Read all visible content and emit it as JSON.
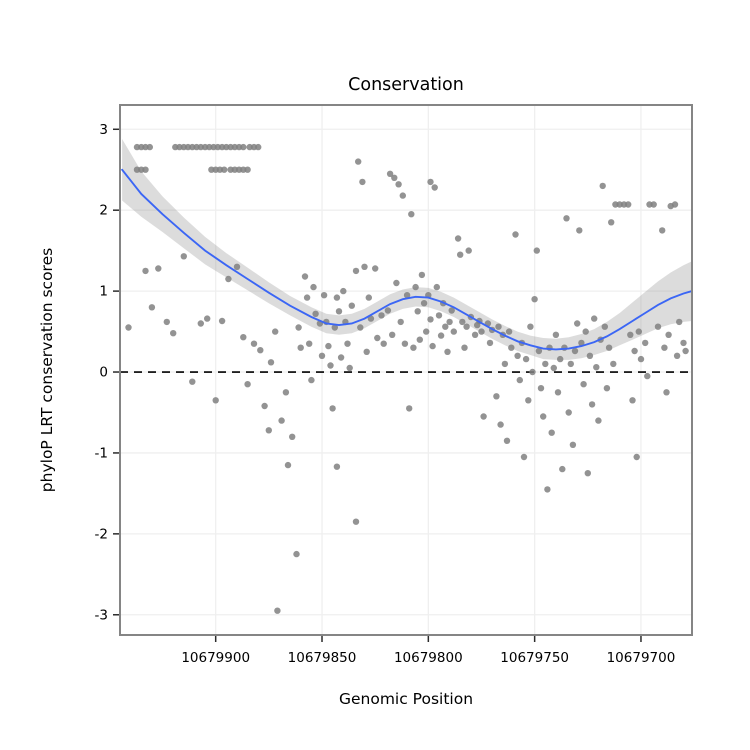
{
  "chart_data": {
    "type": "scatter",
    "title": "Conservation",
    "xlabel": "Genomic Position",
    "ylabel": "phyloP LRT conservation scores",
    "x_axis_reversed": true,
    "xlim": [
      10679945,
      10679676
    ],
    "ylim": [
      -3.25,
      3.3
    ],
    "x_ticks": [
      10679900,
      10679850,
      10679800,
      10679750,
      10679700
    ],
    "y_ticks": [
      -3,
      -2,
      -1,
      0,
      1,
      2,
      3
    ],
    "reference_line_y": 0,
    "legend": "none",
    "grid": "faint major gridlines",
    "style": {
      "point_color": "#808080",
      "point_opacity": 0.85,
      "point_radius": 3.2,
      "smooth_line_color": "#3b66f5",
      "band_color": "#9a9a9a",
      "band_opacity": 0.35,
      "reference_line_color": "#000000",
      "panel_border_color": "#858585",
      "gridline_color": "#efefef",
      "panel_background": "#ffffff"
    },
    "smooth": [
      [
        10679944,
        2.5,
        0.38
      ],
      [
        10679935,
        2.2,
        0.28
      ],
      [
        10679925,
        1.95,
        0.22
      ],
      [
        10679915,
        1.72,
        0.19
      ],
      [
        10679905,
        1.5,
        0.17
      ],
      [
        10679895,
        1.32,
        0.15
      ],
      [
        10679885,
        1.15,
        0.14
      ],
      [
        10679875,
        0.98,
        0.13
      ],
      [
        10679865,
        0.82,
        0.12
      ],
      [
        10679855,
        0.68,
        0.12
      ],
      [
        10679848,
        0.6,
        0.12
      ],
      [
        10679842,
        0.58,
        0.12
      ],
      [
        10679836,
        0.6,
        0.12
      ],
      [
        10679830,
        0.66,
        0.12
      ],
      [
        10679824,
        0.75,
        0.12
      ],
      [
        10679818,
        0.84,
        0.12
      ],
      [
        10679812,
        0.9,
        0.12
      ],
      [
        10679806,
        0.93,
        0.12
      ],
      [
        10679800,
        0.92,
        0.12
      ],
      [
        10679794,
        0.87,
        0.12
      ],
      [
        10679788,
        0.8,
        0.12
      ],
      [
        10679782,
        0.71,
        0.12
      ],
      [
        10679776,
        0.62,
        0.12
      ],
      [
        10679770,
        0.53,
        0.12
      ],
      [
        10679764,
        0.45,
        0.12
      ],
      [
        10679758,
        0.38,
        0.12
      ],
      [
        10679752,
        0.33,
        0.12
      ],
      [
        10679746,
        0.29,
        0.13
      ],
      [
        10679740,
        0.28,
        0.13
      ],
      [
        10679734,
        0.29,
        0.14
      ],
      [
        10679728,
        0.32,
        0.15
      ],
      [
        10679722,
        0.37,
        0.16
      ],
      [
        10679716,
        0.44,
        0.18
      ],
      [
        10679710,
        0.53,
        0.2
      ],
      [
        10679704,
        0.63,
        0.23
      ],
      [
        10679698,
        0.73,
        0.26
      ],
      [
        10679692,
        0.83,
        0.29
      ],
      [
        10679686,
        0.91,
        0.32
      ],
      [
        10679680,
        0.97,
        0.35
      ],
      [
        10679676,
        1.0,
        0.37
      ]
    ],
    "points": [
      [
        10679937,
        2.78
      ],
      [
        10679935,
        2.78
      ],
      [
        10679933,
        2.78
      ],
      [
        10679931,
        2.78
      ],
      [
        10679919,
        2.78
      ],
      [
        10679917,
        2.78
      ],
      [
        10679915,
        2.78
      ],
      [
        10679913,
        2.78
      ],
      [
        10679911,
        2.78
      ],
      [
        10679909,
        2.78
      ],
      [
        10679907,
        2.78
      ],
      [
        10679905,
        2.78
      ],
      [
        10679903,
        2.78
      ],
      [
        10679901,
        2.78
      ],
      [
        10679899,
        2.78
      ],
      [
        10679897,
        2.78
      ],
      [
        10679895,
        2.78
      ],
      [
        10679893,
        2.78
      ],
      [
        10679891,
        2.78
      ],
      [
        10679889,
        2.78
      ],
      [
        10679887,
        2.78
      ],
      [
        10679884,
        2.78
      ],
      [
        10679882,
        2.78
      ],
      [
        10679880,
        2.78
      ],
      [
        10679937,
        2.5
      ],
      [
        10679935,
        2.5
      ],
      [
        10679933,
        2.5
      ],
      [
        10679902,
        2.5
      ],
      [
        10679900,
        2.5
      ],
      [
        10679898,
        2.5
      ],
      [
        10679896,
        2.5
      ],
      [
        10679893,
        2.5
      ],
      [
        10679891,
        2.5
      ],
      [
        10679889,
        2.5
      ],
      [
        10679887,
        2.5
      ],
      [
        10679885,
        2.5
      ],
      [
        10679941,
        0.55
      ],
      [
        10679933,
        1.25
      ],
      [
        10679930,
        0.8
      ],
      [
        10679927,
        1.28
      ],
      [
        10679923,
        0.62
      ],
      [
        10679920,
        0.48
      ],
      [
        10679915,
        1.43
      ],
      [
        10679911,
        -0.12
      ],
      [
        10679907,
        0.6
      ],
      [
        10679904,
        0.66
      ],
      [
        10679900,
        -0.35
      ],
      [
        10679897,
        0.63
      ],
      [
        10679894,
        1.15
      ],
      [
        10679890,
        1.3
      ],
      [
        10679887,
        0.43
      ],
      [
        10679885,
        -0.15
      ],
      [
        10679882,
        0.35
      ],
      [
        10679879,
        0.27
      ],
      [
        10679877,
        -0.42
      ],
      [
        10679875,
        -0.72
      ],
      [
        10679874,
        0.12
      ],
      [
        10679872,
        0.5
      ],
      [
        10679871,
        -2.95
      ],
      [
        10679869,
        -0.6
      ],
      [
        10679867,
        -0.25
      ],
      [
        10679866,
        -1.15
      ],
      [
        10679864,
        -0.8
      ],
      [
        10679862,
        -2.25
      ],
      [
        10679861,
        0.55
      ],
      [
        10679860,
        0.3
      ],
      [
        10679858,
        1.18
      ],
      [
        10679857,
        0.92
      ],
      [
        10679856,
        0.35
      ],
      [
        10679855,
        -0.1
      ],
      [
        10679854,
        1.05
      ],
      [
        10679853,
        0.72
      ],
      [
        10679851,
        0.6
      ],
      [
        10679850,
        0.2
      ],
      [
        10679849,
        0.95
      ],
      [
        10679848,
        0.62
      ],
      [
        10679847,
        0.32
      ],
      [
        10679846,
        0.08
      ],
      [
        10679845,
        -0.45
      ],
      [
        10679844,
        0.55
      ],
      [
        10679843,
        -1.17
      ],
      [
        10679843,
        0.92
      ],
      [
        10679842,
        0.75
      ],
      [
        10679841,
        0.18
      ],
      [
        10679840,
        1.0
      ],
      [
        10679839,
        0.62
      ],
      [
        10679838,
        0.35
      ],
      [
        10679837,
        0.05
      ],
      [
        10679836,
        0.82
      ],
      [
        10679834,
        -1.85
      ],
      [
        10679833,
        2.6
      ],
      [
        10679831,
        2.35
      ],
      [
        10679834,
        1.25
      ],
      [
        10679832,
        0.55
      ],
      [
        10679830,
        1.3
      ],
      [
        10679829,
        0.25
      ],
      [
        10679828,
        0.92
      ],
      [
        10679827,
        0.66
      ],
      [
        10679825,
        1.28
      ],
      [
        10679824,
        0.42
      ],
      [
        10679822,
        0.7
      ],
      [
        10679821,
        0.35
      ],
      [
        10679818,
        2.45
      ],
      [
        10679816,
        2.4
      ],
      [
        10679814,
        2.32
      ],
      [
        10679812,
        2.18
      ],
      [
        10679808,
        1.95
      ],
      [
        10679819,
        0.76
      ],
      [
        10679817,
        0.46
      ],
      [
        10679815,
        1.1
      ],
      [
        10679813,
        0.62
      ],
      [
        10679811,
        0.35
      ],
      [
        10679810,
        0.95
      ],
      [
        10679809,
        -0.45
      ],
      [
        10679807,
        0.3
      ],
      [
        10679806,
        1.05
      ],
      [
        10679805,
        0.75
      ],
      [
        10679804,
        0.4
      ],
      [
        10679803,
        1.2
      ],
      [
        10679802,
        0.85
      ],
      [
        10679801,
        0.5
      ],
      [
        10679799,
        2.35
      ],
      [
        10679797,
        2.28
      ],
      [
        10679800,
        0.95
      ],
      [
        10679799,
        0.65
      ],
      [
        10679798,
        0.32
      ],
      [
        10679796,
        1.05
      ],
      [
        10679795,
        0.7
      ],
      [
        10679794,
        0.45
      ],
      [
        10679793,
        0.85
      ],
      [
        10679792,
        0.56
      ],
      [
        10679791,
        0.25
      ],
      [
        10679790,
        0.62
      ],
      [
        10679789,
        0.76
      ],
      [
        10679788,
        0.5
      ],
      [
        10679786,
        1.65
      ],
      [
        10679785,
        1.45
      ],
      [
        10679784,
        0.62
      ],
      [
        10679783,
        0.3
      ],
      [
        10679782,
        0.56
      ],
      [
        10679781,
        1.5
      ],
      [
        10679780,
        0.68
      ],
      [
        10679778,
        0.46
      ],
      [
        10679777,
        0.58
      ],
      [
        10679776,
        0.63
      ],
      [
        10679775,
        0.5
      ],
      [
        10679774,
        -0.55
      ],
      [
        10679772,
        0.6
      ],
      [
        10679771,
        0.36
      ],
      [
        10679770,
        0.52
      ],
      [
        10679768,
        -0.3
      ],
      [
        10679767,
        0.56
      ],
      [
        10679766,
        -0.65
      ],
      [
        10679765,
        0.46
      ],
      [
        10679764,
        0.1
      ],
      [
        10679763,
        -0.85
      ],
      [
        10679762,
        0.5
      ],
      [
        10679761,
        0.3
      ],
      [
        10679759,
        1.7
      ],
      [
        10679758,
        0.2
      ],
      [
        10679757,
        -0.1
      ],
      [
        10679756,
        0.36
      ],
      [
        10679755,
        -1.05
      ],
      [
        10679754,
        0.16
      ],
      [
        10679753,
        -0.35
      ],
      [
        10679752,
        0.56
      ],
      [
        10679751,
        0.0
      ],
      [
        10679750,
        0.9
      ],
      [
        10679749,
        1.5
      ],
      [
        10679748,
        0.26
      ],
      [
        10679747,
        -0.2
      ],
      [
        10679746,
        -0.55
      ],
      [
        10679745,
        0.1
      ],
      [
        10679744,
        -1.45
      ],
      [
        10679743,
        0.3
      ],
      [
        10679742,
        -0.75
      ],
      [
        10679741,
        0.05
      ],
      [
        10679740,
        0.46
      ],
      [
        10679739,
        -0.25
      ],
      [
        10679738,
        0.16
      ],
      [
        10679737,
        -1.2
      ],
      [
        10679736,
        0.3
      ],
      [
        10679735,
        1.9
      ],
      [
        10679734,
        -0.5
      ],
      [
        10679733,
        0.1
      ],
      [
        10679732,
        -0.9
      ],
      [
        10679731,
        0.26
      ],
      [
        10679730,
        0.6
      ],
      [
        10679729,
        1.75
      ],
      [
        10679728,
        0.36
      ],
      [
        10679727,
        -0.15
      ],
      [
        10679726,
        0.5
      ],
      [
        10679725,
        -1.25
      ],
      [
        10679724,
        0.2
      ],
      [
        10679723,
        -0.4
      ],
      [
        10679722,
        0.66
      ],
      [
        10679721,
        0.06
      ],
      [
        10679720,
        -0.6
      ],
      [
        10679719,
        0.4
      ],
      [
        10679718,
        2.3
      ],
      [
        10679717,
        0.56
      ],
      [
        10679716,
        -0.2
      ],
      [
        10679715,
        0.3
      ],
      [
        10679714,
        1.85
      ],
      [
        10679713,
        0.1
      ],
      [
        10679712,
        2.07
      ],
      [
        10679710,
        2.07
      ],
      [
        10679708,
        2.07
      ],
      [
        10679706,
        2.07
      ],
      [
        10679705,
        0.46
      ],
      [
        10679704,
        -0.35
      ],
      [
        10679703,
        0.26
      ],
      [
        10679702,
        -1.05
      ],
      [
        10679701,
        0.5
      ],
      [
        10679700,
        0.16
      ],
      [
        10679698,
        0.36
      ],
      [
        10679697,
        -0.05
      ],
      [
        10679696,
        2.07
      ],
      [
        10679694,
        2.07
      ],
      [
        10679692,
        0.56
      ],
      [
        10679690,
        1.75
      ],
      [
        10679689,
        0.3
      ],
      [
        10679688,
        -0.25
      ],
      [
        10679687,
        0.46
      ],
      [
        10679686,
        2.05
      ],
      [
        10679684,
        2.07
      ],
      [
        10679683,
        0.2
      ],
      [
        10679682,
        0.62
      ],
      [
        10679680,
        0.36
      ],
      [
        10679679,
        0.26
      ]
    ]
  }
}
